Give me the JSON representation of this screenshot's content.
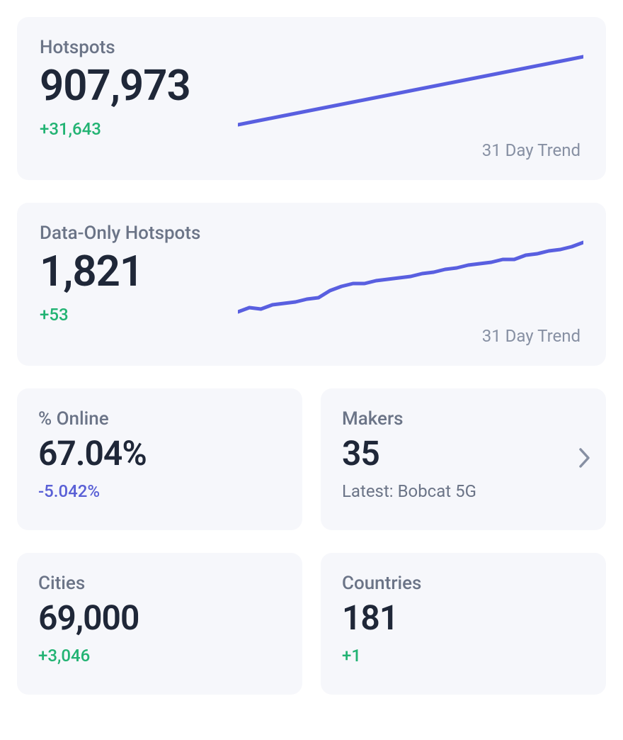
{
  "colors": {
    "card_bg": "#f6f7fb",
    "label_text": "#6b7487",
    "value_text": "#1f2738",
    "delta_positive": "#22b373",
    "delta_negative": "#5a60d6",
    "trend_line": "#595fe0",
    "caption_text": "#8790a3",
    "chevron": "#8790a3"
  },
  "typography": {
    "label_fontsize": 26,
    "value_fontsize_large": 60,
    "value_fontsize_small": 48,
    "delta_fontsize": 24,
    "caption_fontsize": 24,
    "value_fontweight": 600,
    "font_family": "-apple-system"
  },
  "layout": {
    "card_radius": 16,
    "page_padding": 24,
    "card_gap": 26,
    "wide_card_height": 230,
    "small_card_height": 200
  },
  "hotspots": {
    "label": "Hotspots",
    "value": "907,973",
    "delta": "+31,643",
    "delta_sign": "pos",
    "trend_caption": "31 Day Trend",
    "chart": {
      "type": "line",
      "stroke": "#595fe0",
      "stroke_width": 5,
      "viewbox_w": 480,
      "viewbox_h": 120,
      "points": [
        [
          0,
          108
        ],
        [
          20,
          104
        ],
        [
          40,
          100
        ],
        [
          60,
          96
        ],
        [
          80,
          92
        ],
        [
          100,
          88
        ],
        [
          120,
          84
        ],
        [
          140,
          80
        ],
        [
          160,
          76
        ],
        [
          180,
          72
        ],
        [
          200,
          68
        ],
        [
          220,
          64
        ],
        [
          240,
          60
        ],
        [
          260,
          56
        ],
        [
          280,
          52
        ],
        [
          300,
          48
        ],
        [
          320,
          44
        ],
        [
          340,
          40
        ],
        [
          360,
          36
        ],
        [
          380,
          32
        ],
        [
          400,
          28
        ],
        [
          420,
          24
        ],
        [
          440,
          20
        ],
        [
          460,
          16
        ],
        [
          480,
          12
        ]
      ]
    }
  },
  "data_only_hotspots": {
    "label": "Data-Only Hotspots",
    "value": "1,821",
    "delta": "+53",
    "delta_sign": "pos",
    "trend_caption": "31 Day Trend",
    "chart": {
      "type": "line",
      "stroke": "#595fe0",
      "stroke_width": 5,
      "viewbox_w": 480,
      "viewbox_h": 120,
      "points": [
        [
          0,
          110
        ],
        [
          16,
          104
        ],
        [
          32,
          106
        ],
        [
          48,
          100
        ],
        [
          64,
          98
        ],
        [
          80,
          96
        ],
        [
          96,
          92
        ],
        [
          112,
          90
        ],
        [
          128,
          80
        ],
        [
          144,
          74
        ],
        [
          160,
          70
        ],
        [
          176,
          70
        ],
        [
          192,
          66
        ],
        [
          208,
          64
        ],
        [
          224,
          62
        ],
        [
          240,
          60
        ],
        [
          256,
          56
        ],
        [
          272,
          54
        ],
        [
          288,
          50
        ],
        [
          304,
          48
        ],
        [
          320,
          44
        ],
        [
          336,
          42
        ],
        [
          352,
          40
        ],
        [
          368,
          36
        ],
        [
          384,
          36
        ],
        [
          400,
          30
        ],
        [
          416,
          28
        ],
        [
          432,
          24
        ],
        [
          448,
          22
        ],
        [
          464,
          18
        ],
        [
          480,
          12
        ]
      ]
    }
  },
  "percent_online": {
    "label": "% Online",
    "value": "67.04%",
    "delta": "-5.042%",
    "delta_sign": "neg"
  },
  "makers": {
    "label": "Makers",
    "value": "35",
    "subtext": "Latest: Bobcat 5G",
    "has_chevron": true
  },
  "cities": {
    "label": "Cities",
    "value": "69,000",
    "delta": "+3,046",
    "delta_sign": "pos"
  },
  "countries": {
    "label": "Countries",
    "value": "181",
    "delta": "+1",
    "delta_sign": "pos"
  }
}
